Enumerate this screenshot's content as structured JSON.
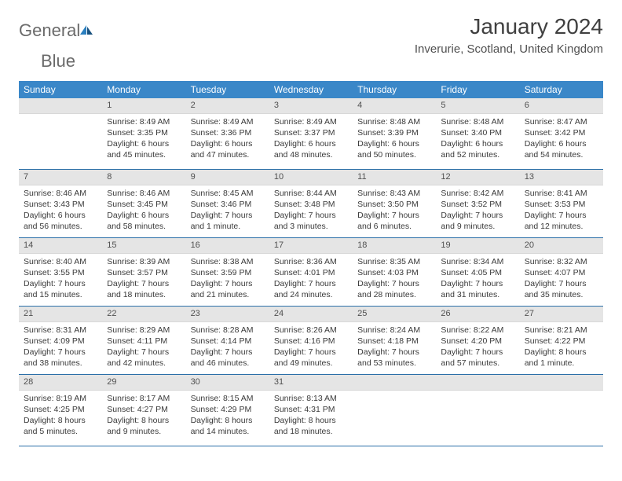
{
  "logo": {
    "text1": "General",
    "text2": "Blue"
  },
  "title": "January 2024",
  "location": "Inverurie, Scotland, United Kingdom",
  "colors": {
    "header_bg": "#3a87c8",
    "header_text": "#ffffff",
    "daynum_bg": "#e5e5e5",
    "row_border": "#2b6fa8",
    "logo_gray": "#6a6a6a",
    "logo_blue": "#2b7fbf"
  },
  "weekdays": [
    "Sunday",
    "Monday",
    "Tuesday",
    "Wednesday",
    "Thursday",
    "Friday",
    "Saturday"
  ],
  "weeks": [
    [
      {
        "n": "",
        "sr": "",
        "ss": "",
        "dl": ""
      },
      {
        "n": "1",
        "sr": "Sunrise: 8:49 AM",
        "ss": "Sunset: 3:35 PM",
        "dl": "Daylight: 6 hours and 45 minutes."
      },
      {
        "n": "2",
        "sr": "Sunrise: 8:49 AM",
        "ss": "Sunset: 3:36 PM",
        "dl": "Daylight: 6 hours and 47 minutes."
      },
      {
        "n": "3",
        "sr": "Sunrise: 8:49 AM",
        "ss": "Sunset: 3:37 PM",
        "dl": "Daylight: 6 hours and 48 minutes."
      },
      {
        "n": "4",
        "sr": "Sunrise: 8:48 AM",
        "ss": "Sunset: 3:39 PM",
        "dl": "Daylight: 6 hours and 50 minutes."
      },
      {
        "n": "5",
        "sr": "Sunrise: 8:48 AM",
        "ss": "Sunset: 3:40 PM",
        "dl": "Daylight: 6 hours and 52 minutes."
      },
      {
        "n": "6",
        "sr": "Sunrise: 8:47 AM",
        "ss": "Sunset: 3:42 PM",
        "dl": "Daylight: 6 hours and 54 minutes."
      }
    ],
    [
      {
        "n": "7",
        "sr": "Sunrise: 8:46 AM",
        "ss": "Sunset: 3:43 PM",
        "dl": "Daylight: 6 hours and 56 minutes."
      },
      {
        "n": "8",
        "sr": "Sunrise: 8:46 AM",
        "ss": "Sunset: 3:45 PM",
        "dl": "Daylight: 6 hours and 58 minutes."
      },
      {
        "n": "9",
        "sr": "Sunrise: 8:45 AM",
        "ss": "Sunset: 3:46 PM",
        "dl": "Daylight: 7 hours and 1 minute."
      },
      {
        "n": "10",
        "sr": "Sunrise: 8:44 AM",
        "ss": "Sunset: 3:48 PM",
        "dl": "Daylight: 7 hours and 3 minutes."
      },
      {
        "n": "11",
        "sr": "Sunrise: 8:43 AM",
        "ss": "Sunset: 3:50 PM",
        "dl": "Daylight: 7 hours and 6 minutes."
      },
      {
        "n": "12",
        "sr": "Sunrise: 8:42 AM",
        "ss": "Sunset: 3:52 PM",
        "dl": "Daylight: 7 hours and 9 minutes."
      },
      {
        "n": "13",
        "sr": "Sunrise: 8:41 AM",
        "ss": "Sunset: 3:53 PM",
        "dl": "Daylight: 7 hours and 12 minutes."
      }
    ],
    [
      {
        "n": "14",
        "sr": "Sunrise: 8:40 AM",
        "ss": "Sunset: 3:55 PM",
        "dl": "Daylight: 7 hours and 15 minutes."
      },
      {
        "n": "15",
        "sr": "Sunrise: 8:39 AM",
        "ss": "Sunset: 3:57 PM",
        "dl": "Daylight: 7 hours and 18 minutes."
      },
      {
        "n": "16",
        "sr": "Sunrise: 8:38 AM",
        "ss": "Sunset: 3:59 PM",
        "dl": "Daylight: 7 hours and 21 minutes."
      },
      {
        "n": "17",
        "sr": "Sunrise: 8:36 AM",
        "ss": "Sunset: 4:01 PM",
        "dl": "Daylight: 7 hours and 24 minutes."
      },
      {
        "n": "18",
        "sr": "Sunrise: 8:35 AM",
        "ss": "Sunset: 4:03 PM",
        "dl": "Daylight: 7 hours and 28 minutes."
      },
      {
        "n": "19",
        "sr": "Sunrise: 8:34 AM",
        "ss": "Sunset: 4:05 PM",
        "dl": "Daylight: 7 hours and 31 minutes."
      },
      {
        "n": "20",
        "sr": "Sunrise: 8:32 AM",
        "ss": "Sunset: 4:07 PM",
        "dl": "Daylight: 7 hours and 35 minutes."
      }
    ],
    [
      {
        "n": "21",
        "sr": "Sunrise: 8:31 AM",
        "ss": "Sunset: 4:09 PM",
        "dl": "Daylight: 7 hours and 38 minutes."
      },
      {
        "n": "22",
        "sr": "Sunrise: 8:29 AM",
        "ss": "Sunset: 4:11 PM",
        "dl": "Daylight: 7 hours and 42 minutes."
      },
      {
        "n": "23",
        "sr": "Sunrise: 8:28 AM",
        "ss": "Sunset: 4:14 PM",
        "dl": "Daylight: 7 hours and 46 minutes."
      },
      {
        "n": "24",
        "sr": "Sunrise: 8:26 AM",
        "ss": "Sunset: 4:16 PM",
        "dl": "Daylight: 7 hours and 49 minutes."
      },
      {
        "n": "25",
        "sr": "Sunrise: 8:24 AM",
        "ss": "Sunset: 4:18 PM",
        "dl": "Daylight: 7 hours and 53 minutes."
      },
      {
        "n": "26",
        "sr": "Sunrise: 8:22 AM",
        "ss": "Sunset: 4:20 PM",
        "dl": "Daylight: 7 hours and 57 minutes."
      },
      {
        "n": "27",
        "sr": "Sunrise: 8:21 AM",
        "ss": "Sunset: 4:22 PM",
        "dl": "Daylight: 8 hours and 1 minute."
      }
    ],
    [
      {
        "n": "28",
        "sr": "Sunrise: 8:19 AM",
        "ss": "Sunset: 4:25 PM",
        "dl": "Daylight: 8 hours and 5 minutes."
      },
      {
        "n": "29",
        "sr": "Sunrise: 8:17 AM",
        "ss": "Sunset: 4:27 PM",
        "dl": "Daylight: 8 hours and 9 minutes."
      },
      {
        "n": "30",
        "sr": "Sunrise: 8:15 AM",
        "ss": "Sunset: 4:29 PM",
        "dl": "Daylight: 8 hours and 14 minutes."
      },
      {
        "n": "31",
        "sr": "Sunrise: 8:13 AM",
        "ss": "Sunset: 4:31 PM",
        "dl": "Daylight: 8 hours and 18 minutes."
      },
      {
        "n": "",
        "sr": "",
        "ss": "",
        "dl": ""
      },
      {
        "n": "",
        "sr": "",
        "ss": "",
        "dl": ""
      },
      {
        "n": "",
        "sr": "",
        "ss": "",
        "dl": ""
      }
    ]
  ]
}
